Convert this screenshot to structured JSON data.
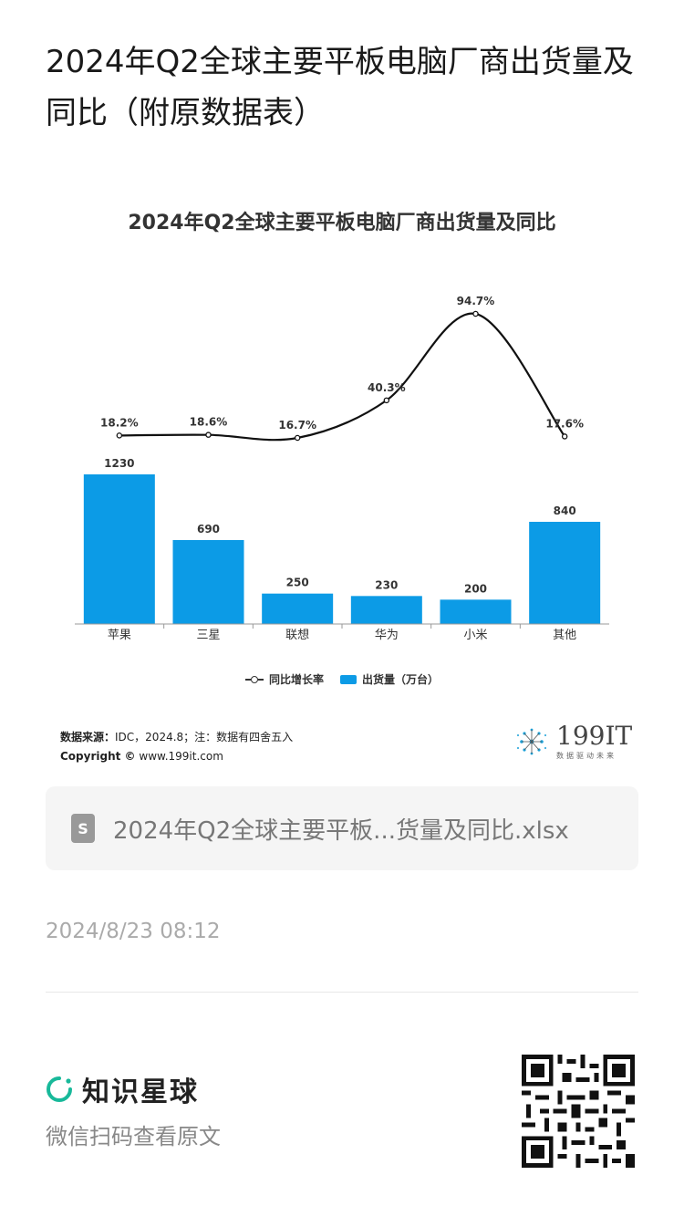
{
  "post": {
    "title": "2024年Q2全球主要平板电脑厂商出货量及同比（附原数据表）",
    "file_name": "2024年Q2全球主要平板...货量及同比.xlsx",
    "file_icon": "document-icon",
    "timestamp": "2024/8/23 08:12"
  },
  "chart_data": {
    "type": "bar",
    "title": "2024年Q2全球主要平板电脑厂商出货量及同比",
    "categories": [
      "苹果",
      "三星",
      "联想",
      "华为",
      "小米",
      "其他"
    ],
    "series": [
      {
        "name": "出货量（万台）",
        "type": "bar",
        "values": [
          1230,
          690,
          250,
          230,
          200,
          840
        ],
        "labels": [
          "1230",
          "690",
          "250",
          "230",
          "200",
          "840"
        ],
        "color": "#0c9be6"
      },
      {
        "name": "同比增长率",
        "type": "line",
        "values": [
          18.2,
          18.6,
          16.7,
          40.3,
          94.7,
          17.6
        ],
        "labels": [
          "18.2%",
          "18.6%",
          "16.7%",
          "40.3%",
          "94.7%",
          "17.6%"
        ],
        "color": "#111111"
      }
    ],
    "legend_position": "bottom",
    "grid": false
  },
  "source": {
    "label": "数据来源：",
    "text": "IDC，2024.8；注：数据有四舍五入",
    "copyright_label": "Copyright ©",
    "copyright_url": "www.199it.com"
  },
  "logo": {
    "text": "199IT",
    "subtitle": "数据驱动未来"
  },
  "footer": {
    "brand": "知识星球",
    "scan_text": "微信扫码查看原文"
  }
}
